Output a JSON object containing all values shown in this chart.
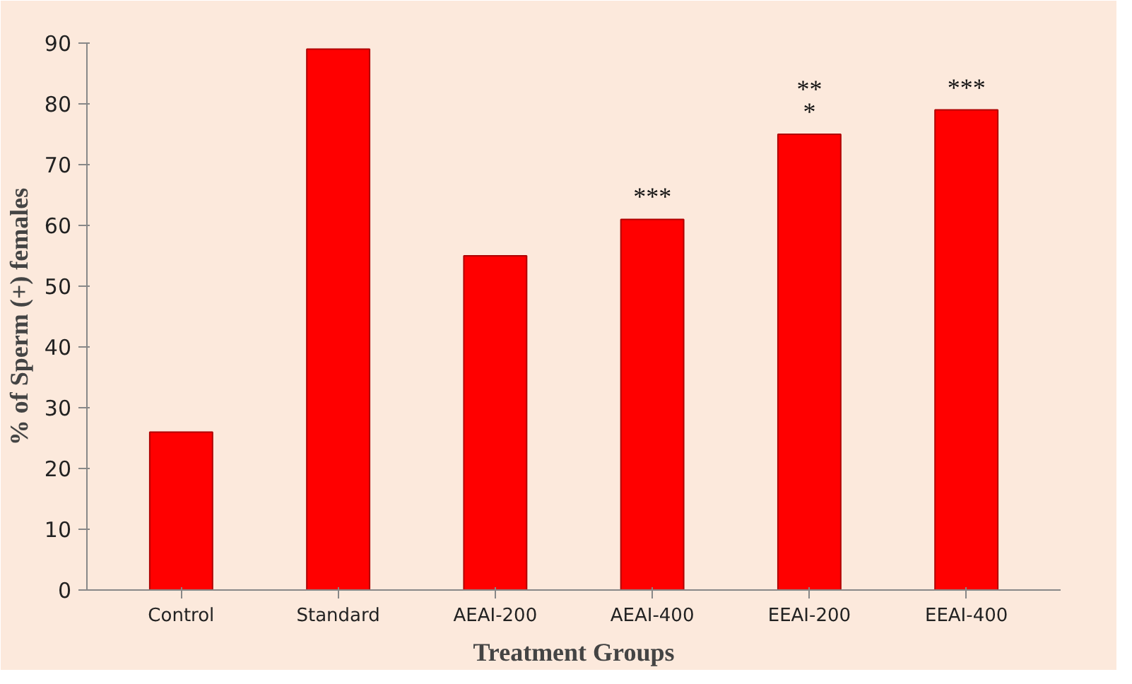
{
  "chart_data": {
    "type": "bar",
    "xlabel": "Treatment Groups",
    "ylabel": "% of Sperm (+) females",
    "categories": [
      "Control",
      "Standard",
      "AEAI-200",
      "AEAI-400",
      "EEAI-200",
      "EEAI-400"
    ],
    "values": [
      26,
      89,
      55,
      61,
      75,
      79
    ],
    "color": "#ff0000",
    "ylim": [
      0,
      90
    ],
    "yticks": [
      0,
      10,
      20,
      30,
      40,
      50,
      60,
      70,
      80,
      90
    ],
    "grid": false,
    "annotations": [
      {
        "text": "***",
        "x": "AEAI-400",
        "y": 61
      },
      {
        "text": "**",
        "x": "EEAI-200",
        "y": 75
      },
      {
        "text": "*",
        "x": "EEAI-200",
        "y": 75
      },
      {
        "text": "***",
        "x": "EEAI-400",
        "y": 79
      }
    ]
  }
}
